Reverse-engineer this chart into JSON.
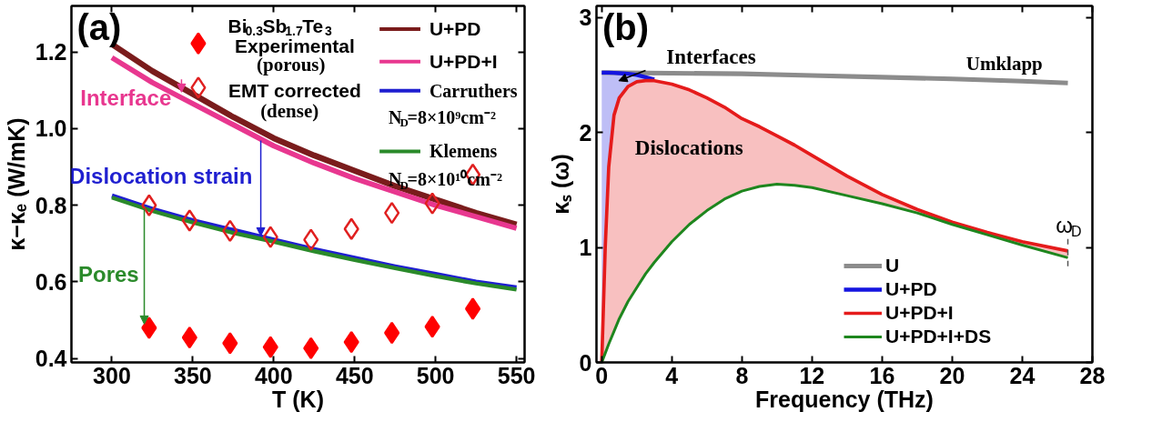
{
  "chart_data": [
    {
      "type": "line",
      "xlabel": "T (K)",
      "ylabel": "κ−κₑ (W/mK)",
      "legend_title": "Bi$_{0.3}$Sb$_{1.7}$Te$_{3}$",
      "legend": "top",
      "xlim": [
        275,
        555
      ],
      "ylim": [
        0.39,
        1.32
      ],
      "xticks": [
        300,
        350,
        400,
        450,
        500,
        550
      ],
      "yticks": [
        {
          "value": 0.4,
          "label": "0.4"
        },
        {
          "value": 0.6,
          "label": "0.6"
        },
        {
          "value": 0.8,
          "label": "0.8"
        },
        {
          "value": 1,
          "label": "1.0"
        },
        {
          "value": 1.2,
          "label": "1.2"
        }
      ],
      "annotations": [
        "(a)",
        {
          "text": "Interface",
          "x": 343,
          "y": 1.095
        },
        {
          "text": "Dislocation strain",
          "x": 392,
          "y": 0.72
        },
        {
          "text": "Pores",
          "x": 320,
          "y": 0.49
        }
      ],
      "series": [
        {
          "name": "U+PD",
          "color": "#7a1c1c",
          "x": [
            300,
            325,
            350,
            375,
            400,
            425,
            450,
            475,
            500,
            525,
            550
          ],
          "values": [
            1.22,
            1.15,
            1.09,
            1.03,
            0.975,
            0.93,
            0.89,
            0.85,
            0.815,
            0.78,
            0.75
          ]
        },
        {
          "name": "U+PD+I",
          "color": "#e8378f",
          "x": [
            300,
            325,
            350,
            375,
            400,
            425,
            450,
            475,
            500,
            525,
            550
          ],
          "values": [
            1.185,
            1.12,
            1.065,
            1.01,
            0.955,
            0.91,
            0.87,
            0.835,
            0.8,
            0.77,
            0.74
          ]
        },
        {
          "name": "Carruthers N$_{D}$=8×10⁹cm⁻²",
          "color": "#1f1fd0",
          "x": [
            300,
            325,
            350,
            375,
            400,
            425,
            450,
            475,
            500,
            525,
            550
          ],
          "values": [
            0.825,
            0.79,
            0.76,
            0.735,
            0.71,
            0.685,
            0.662,
            0.64,
            0.62,
            0.6,
            0.585
          ]
        },
        {
          "name": "Klemens N$_{D}$=8×10¹⁰cm⁻²",
          "color": "#2a8a2a",
          "x": [
            300,
            325,
            350,
            375,
            400,
            425,
            450,
            475,
            500,
            525,
            550
          ],
          "values": [
            0.82,
            0.785,
            0.755,
            0.728,
            0.705,
            0.68,
            0.657,
            0.636,
            0.615,
            0.596,
            0.58
          ]
        },
        {
          "name": "Experimental (porous)",
          "type": "scatter",
          "marker": "diamond",
          "color": "#ff0000",
          "x": [
            323,
            348,
            373,
            398,
            423,
            448,
            473,
            498,
            523
          ],
          "values": [
            0.48,
            0.455,
            0.44,
            0.43,
            0.427,
            0.443,
            0.467,
            0.483,
            0.53
          ]
        },
        {
          "name": "EMT corrected (dense)",
          "type": "scatter",
          "marker": "diamond_open",
          "color": "#e02020",
          "x": [
            323,
            348,
            373,
            398,
            423,
            448,
            473,
            498,
            523
          ],
          "values": [
            0.8,
            0.76,
            0.733,
            0.717,
            0.71,
            0.738,
            0.78,
            0.805,
            0.88
          ]
        }
      ]
    },
    {
      "type": "line",
      "xlabel": "Frequency (THz)",
      "ylabel": "κₛ (ω)",
      "legend": "bottom right",
      "xlim": [
        -0.3,
        28
      ],
      "ylim": [
        0,
        3.1
      ],
      "xticks": [
        0,
        4,
        8,
        12,
        16,
        20,
        24,
        28
      ],
      "yticks": [
        0,
        1,
        2,
        3
      ],
      "ref_lines": [
        {
          "axis": "x",
          "value": 26.6,
          "label": "ω$_{D}$",
          "line_style": "dashed"
        }
      ],
      "annotations": [
        "(b)",
        "Interfaces",
        "Umklapp",
        "Dislocations"
      ],
      "series": [
        {
          "name": "U",
          "color": "#8c8c8c",
          "x": [
            0,
            4,
            8,
            12,
            16,
            20,
            24,
            26.6
          ],
          "values": [
            2.52,
            2.515,
            2.51,
            2.495,
            2.48,
            2.465,
            2.445,
            2.43
          ]
        },
        {
          "name": "U+PD",
          "color": "#1515e0",
          "x": [
            0,
            0.2,
            0.4,
            0.7,
            1,
            1.5,
            2,
            2.5,
            3
          ],
          "values": [
            2.52,
            2.52,
            2.52,
            2.518,
            2.515,
            2.51,
            2.5,
            2.48,
            2.46
          ],
          "upper": [
            2.52,
            2.52,
            2.52,
            2.518,
            2.515,
            2.51,
            2.5,
            2.48,
            2.46
          ],
          "lower": [
            0,
            1.0,
            1.7,
            2.15,
            2.3,
            2.4,
            2.44,
            2.45,
            2.45
          ]
        },
        {
          "name": "U+PD+I",
          "color": "#e51b1b",
          "x": [
            0,
            0.2,
            0.4,
            0.7,
            1,
            1.5,
            2,
            2.5,
            3,
            4,
            5,
            6,
            7,
            8,
            9,
            10,
            11,
            12,
            14,
            16,
            18,
            20,
            22,
            24,
            26.6
          ],
          "values": [
            0,
            1.0,
            1.7,
            2.15,
            2.3,
            2.4,
            2.44,
            2.45,
            2.45,
            2.42,
            2.37,
            2.3,
            2.22,
            2.12,
            2.05,
            1.97,
            1.89,
            1.8,
            1.62,
            1.46,
            1.33,
            1.22,
            1.13,
            1.05,
            0.97
          ],
          "upper": [
            0,
            1.0,
            1.7,
            2.15,
            2.3,
            2.4,
            2.44,
            2.45,
            2.45,
            2.42,
            2.37,
            2.3,
            2.22,
            2.12,
            2.05,
            1.97,
            1.89,
            1.8,
            1.62,
            1.46,
            1.33,
            1.22,
            1.13,
            1.05,
            0.97
          ],
          "lower": [
            0,
            0.08,
            0.16,
            0.27,
            0.38,
            0.53,
            0.65,
            0.77,
            0.87,
            1.05,
            1.2,
            1.32,
            1.42,
            1.49,
            1.53,
            1.55,
            1.54,
            1.52,
            1.45,
            1.38,
            1.3,
            1.2,
            1.11,
            1.02,
            0.91
          ]
        },
        {
          "name": "U+PD+I+DS",
          "color": "#1e861e",
          "x": [
            0,
            0.2,
            0.4,
            0.7,
            1,
            1.5,
            2,
            2.5,
            3,
            4,
            5,
            6,
            7,
            8,
            9,
            10,
            11,
            12,
            14,
            16,
            18,
            20,
            22,
            24,
            26.6
          ],
          "values": [
            0,
            0.08,
            0.16,
            0.27,
            0.38,
            0.53,
            0.65,
            0.77,
            0.87,
            1.05,
            1.2,
            1.32,
            1.42,
            1.49,
            1.53,
            1.55,
            1.54,
            1.52,
            1.45,
            1.38,
            1.3,
            1.2,
            1.11,
            1.02,
            0.91
          ]
        }
      ]
    }
  ]
}
